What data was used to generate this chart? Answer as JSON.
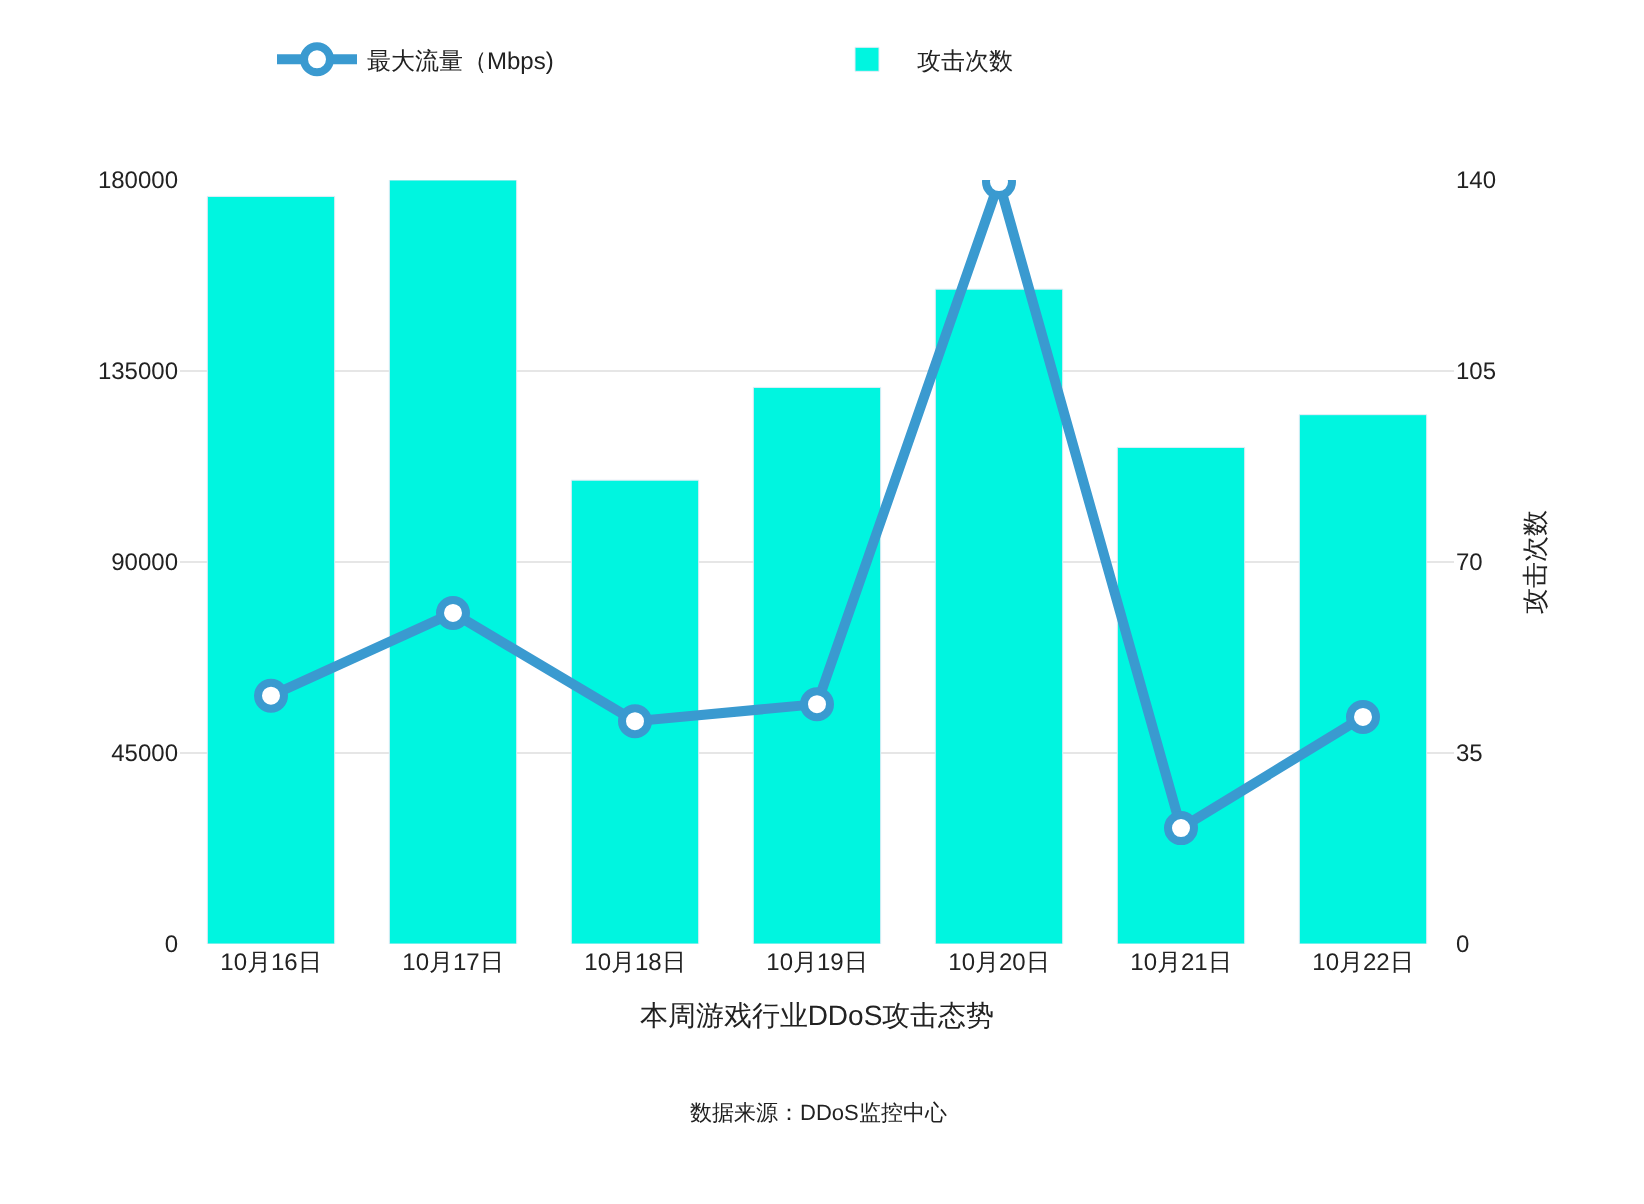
{
  "chart_data": {
    "type": "bar",
    "categories": [
      "10月16日",
      "10月17日",
      "10月18日",
      "10月19日",
      "10月20日",
      "10月21日",
      "10月22日"
    ],
    "series": [
      {
        "name": "最大流量（Mbps)",
        "type": "line",
        "color": "#3a9ad0",
        "axis": "y",
        "values": [
          58500,
          78000,
          52500,
          56500,
          179500,
          27300,
          53500
        ]
      },
      {
        "name": "攻击次数",
        "color": "#00f5e0",
        "axis": "y2",
        "values": [
          137,
          140,
          85,
          102,
          120,
          91,
          97
        ]
      }
    ],
    "xlabel": "本周游戏行业DDoS攻击态势",
    "y2label": "攻击次数",
    "ylim": [
      0,
      180000
    ],
    "yticks": [
      0,
      45000,
      90000,
      135000,
      180000
    ],
    "y2lim": [
      0,
      140
    ],
    "y2ticks": [
      0,
      35,
      70,
      105,
      140
    ],
    "annotations": [
      "数据来源：DDoS监控中心"
    ],
    "grid": "y",
    "legend": "top",
    "marker": "circle",
    "line_style": "solid"
  }
}
